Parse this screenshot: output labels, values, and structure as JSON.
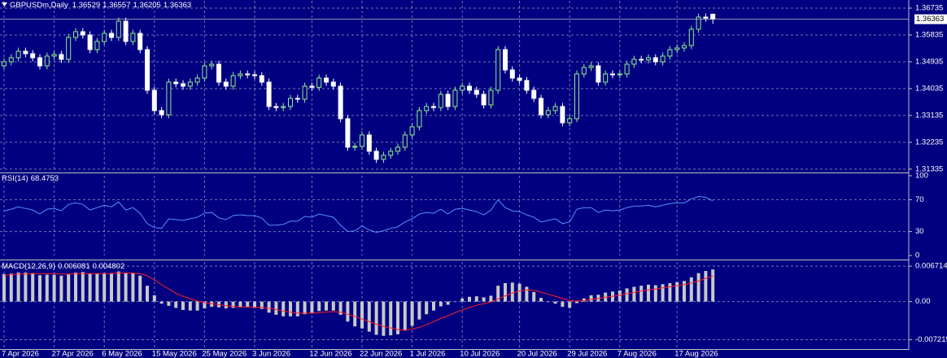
{
  "chart_data": [
    {
      "type": "candlestick",
      "title": "GBPUSDm,Daily",
      "up_color": "#90ee90",
      "down_color": "#ffffff",
      "ylim": [
        1.3125,
        1.3698
      ],
      "yticks": [
        1.36735,
        1.35835,
        1.34935,
        1.34035,
        1.33135,
        1.32235,
        1.31335
      ],
      "grid": true,
      "categories": [
        "7 Apr 2026",
        null,
        null,
        null,
        null,
        null,
        null,
        "27 Apr 2026",
        null,
        null,
        null,
        null,
        null,
        null,
        "6 May 2026",
        null,
        null,
        null,
        null,
        null,
        null,
        "15 May 2026",
        null,
        null,
        null,
        null,
        null,
        null,
        "25 May 2026",
        null,
        null,
        null,
        null,
        null,
        null,
        "3 Jun 2026",
        null,
        null,
        null,
        null,
        null,
        null,
        null,
        "12 Jun 2026",
        null,
        null,
        null,
        null,
        null,
        null,
        "22 Jun 2026",
        null,
        null,
        null,
        null,
        null,
        null,
        "1 Jul 2026",
        null,
        null,
        null,
        null,
        null,
        null,
        "10 Jul 2026",
        null,
        null,
        null,
        null,
        null,
        null,
        null,
        "20 Jul 2026",
        null,
        null,
        null,
        null,
        null,
        null,
        "29 Jul 2026",
        null,
        null,
        null,
        null,
        null,
        null,
        "7 Aug 2026",
        null,
        null,
        null,
        null,
        null,
        null,
        null,
        "17 Aug 2026",
        null,
        null,
        null,
        null,
        null
      ],
      "open": [
        1.348,
        1.34935,
        1.35071,
        1.35289,
        1.35207,
        1.35071,
        1.34798,
        1.35126,
        1.3518,
        1.35017,
        1.35753,
        1.35944,
        1.35835,
        1.35344,
        1.35617,
        1.35889,
        1.35753,
        1.36298,
        1.35617,
        1.35889,
        1.35344,
        1.3398,
        1.33299,
        1.33162,
        1.34253,
        1.342,
        1.34117,
        1.34253,
        1.34389,
        1.34798,
        1.34853,
        1.34253,
        1.34117,
        1.34471,
        1.34526,
        1.345,
        1.34471,
        1.34253,
        1.33435,
        1.334,
        1.33435,
        1.33708,
        1.3368,
        1.34117,
        1.3408,
        1.34389,
        1.34253,
        1.34117,
        1.33026,
        1.32071,
        1.321,
        1.32481,
        1.31935,
        1.31663,
        1.31799,
        1.31935,
        1.32071,
        1.32481,
        1.32753,
        1.33299,
        1.33435,
        1.334,
        1.33844,
        1.33435,
        1.3398,
        1.34117,
        1.3398,
        1.33844,
        1.33489,
        1.3398,
        1.35344,
        1.34662,
        1.34389,
        1.34308,
        1.3398,
        1.33708,
        1.33162,
        1.33299,
        1.33435,
        1.3289,
        1.33026,
        1.34526,
        1.34744,
        1.34798,
        1.34253,
        1.34526,
        1.345,
        1.34526,
        1.34853,
        1.35017,
        1.35,
        1.35071,
        1.34935,
        1.35126,
        1.35344,
        1.35398,
        1.3548,
        1.36026,
        1.36435,
        1.36529
      ],
      "high": [
        1.35055,
        1.35191,
        1.35409,
        1.35409,
        1.35327,
        1.35191,
        1.35246,
        1.353,
        1.353,
        1.35873,
        1.36064,
        1.36064,
        1.35955,
        1.35737,
        1.36009,
        1.36009,
        1.36418,
        1.36418,
        1.36009,
        1.36009,
        1.35464,
        1.341,
        1.33419,
        1.34373,
        1.34373,
        1.3432,
        1.34373,
        1.34509,
        1.34918,
        1.34973,
        1.34973,
        1.34373,
        1.34591,
        1.34646,
        1.34646,
        1.3462,
        1.34591,
        1.34373,
        1.33555,
        1.33555,
        1.33828,
        1.33828,
        1.34237,
        1.34237,
        1.34509,
        1.34509,
        1.34373,
        1.34237,
        1.33146,
        1.3222,
        1.32601,
        1.32601,
        1.32055,
        1.31919,
        1.32055,
        1.32191,
        1.32601,
        1.32873,
        1.33419,
        1.33555,
        1.33555,
        1.33964,
        1.33964,
        1.341,
        1.34237,
        1.34237,
        1.341,
        1.33964,
        1.341,
        1.35464,
        1.35464,
        1.34782,
        1.34509,
        1.34428,
        1.341,
        1.33828,
        1.33419,
        1.33555,
        1.33555,
        1.33146,
        1.34646,
        1.34864,
        1.34918,
        1.34918,
        1.34646,
        1.34646,
        1.34646,
        1.34973,
        1.35137,
        1.35137,
        1.35191,
        1.35191,
        1.35246,
        1.35464,
        1.35518,
        1.356,
        1.36146,
        1.36555,
        1.36555,
        1.36557
      ],
      "low": [
        1.3468,
        1.34815,
        1.34951,
        1.35087,
        1.34951,
        1.34678,
        1.34678,
        1.35006,
        1.34897,
        1.34897,
        1.35633,
        1.35715,
        1.35224,
        1.35224,
        1.35497,
        1.35633,
        1.35633,
        1.35497,
        1.35497,
        1.35224,
        1.3386,
        1.33179,
        1.33042,
        1.33042,
        1.3408,
        1.33997,
        1.33997,
        1.34133,
        1.34269,
        1.34678,
        1.34133,
        1.33997,
        1.33997,
        1.34351,
        1.3438,
        1.34351,
        1.34133,
        1.33315,
        1.3328,
        1.3328,
        1.33315,
        1.3356,
        1.3356,
        1.3396,
        1.3396,
        1.34133,
        1.33997,
        1.32906,
        1.31951,
        1.31951,
        1.3198,
        1.31815,
        1.31543,
        1.31543,
        1.31679,
        1.31815,
        1.31951,
        1.32361,
        1.32633,
        1.33179,
        1.3328,
        1.3328,
        1.33315,
        1.33315,
        1.3386,
        1.3386,
        1.33724,
        1.33369,
        1.33369,
        1.3386,
        1.34542,
        1.34269,
        1.34188,
        1.3386,
        1.33588,
        1.33042,
        1.33042,
        1.33179,
        1.3277,
        1.3277,
        1.32906,
        1.34406,
        1.34624,
        1.34133,
        1.34133,
        1.3438,
        1.3438,
        1.34406,
        1.34733,
        1.3488,
        1.3488,
        1.34815,
        1.34815,
        1.35006,
        1.35224,
        1.35278,
        1.3536,
        1.35906,
        1.3628,
        1.36205
      ],
      "close": [
        1.34935,
        1.35071,
        1.35289,
        1.35207,
        1.35071,
        1.34798,
        1.35126,
        1.3518,
        1.35017,
        1.35753,
        1.35944,
        1.35835,
        1.35344,
        1.35617,
        1.35889,
        1.35753,
        1.36298,
        1.35617,
        1.35889,
        1.35344,
        1.3398,
        1.33299,
        1.33162,
        1.34253,
        1.342,
        1.34117,
        1.34253,
        1.34389,
        1.34798,
        1.34853,
        1.34253,
        1.34117,
        1.34471,
        1.34526,
        1.345,
        1.34471,
        1.34253,
        1.33435,
        1.334,
        1.33435,
        1.33708,
        1.3368,
        1.34117,
        1.3408,
        1.34389,
        1.34253,
        1.34117,
        1.33026,
        1.32071,
        1.321,
        1.32481,
        1.31935,
        1.31663,
        1.31799,
        1.31935,
        1.32071,
        1.32481,
        1.32753,
        1.33299,
        1.33435,
        1.334,
        1.33844,
        1.33435,
        1.3398,
        1.34117,
        1.3398,
        1.33844,
        1.33489,
        1.3398,
        1.35344,
        1.34662,
        1.34389,
        1.34308,
        1.3398,
        1.33708,
        1.33162,
        1.33299,
        1.33435,
        1.3289,
        1.33026,
        1.34526,
        1.34744,
        1.34798,
        1.34253,
        1.34526,
        1.345,
        1.34526,
        1.34853,
        1.35017,
        1.35,
        1.35071,
        1.34935,
        1.35126,
        1.35344,
        1.35398,
        1.3548,
        1.36026,
        1.36435,
        1.364,
        1.36363
      ]
    },
    {
      "type": "line",
      "title": "RSI(14)",
      "color": "#5a8dff",
      "ylim": [
        0,
        100
      ],
      "yticks": [
        100,
        70,
        30,
        0
      ],
      "grid": true,
      "values": [
        56,
        58,
        61,
        59,
        57,
        52,
        58,
        59,
        56,
        64,
        66,
        64,
        57,
        60,
        63,
        61,
        67,
        57,
        60,
        53,
        40,
        35,
        34,
        46,
        45,
        44,
        46,
        48,
        53,
        54,
        47,
        45,
        50,
        51,
        50,
        50,
        47,
        38,
        38,
        39,
        43,
        43,
        49,
        48,
        52,
        50,
        48,
        38,
        30,
        31,
        37,
        32,
        29,
        31,
        34,
        36,
        42,
        46,
        52,
        54,
        53,
        58,
        52,
        58,
        59,
        57,
        55,
        51,
        57,
        70,
        60,
        56,
        55,
        51,
        48,
        42,
        44,
        46,
        40,
        42,
        58,
        60,
        60,
        54,
        57,
        56,
        57,
        60,
        62,
        62,
        63,
        61,
        63,
        65,
        66,
        66,
        71,
        74,
        73,
        68.4753
      ]
    },
    {
      "type": "bar",
      "title": "MACD(12,26,9)",
      "color": "#c8c8c8",
      "signal_color": "#ff2020",
      "ylim": [
        -0.009,
        0.0075
      ],
      "yticks": [
        0.006714,
        {
          "value": 0,
          "label": "0.00"
        },
        -0.007219
      ],
      "grid": true,
      "values": [
        0.0052,
        0.0053,
        0.0055,
        0.0055,
        0.0054,
        0.005,
        0.0051,
        0.0051,
        0.0049,
        0.0052,
        0.0055,
        0.0056,
        0.0053,
        0.0053,
        0.0054,
        0.0054,
        0.0057,
        0.0055,
        0.0054,
        0.0049,
        0.003,
        0.0012,
        -0.0004,
        -0.0008,
        -0.0012,
        -0.0016,
        -0.0017,
        -0.0017,
        -0.0013,
        -0.001,
        -0.0011,
        -0.0013,
        -0.0012,
        -0.0011,
        -0.0011,
        -0.0012,
        -0.0014,
        -0.0021,
        -0.0025,
        -0.0028,
        -0.0028,
        -0.0028,
        -0.0024,
        -0.0022,
        -0.0018,
        -0.0017,
        -0.0017,
        -0.0025,
        -0.0038,
        -0.0047,
        -0.0051,
        -0.0057,
        -0.0063,
        -0.0065,
        -0.0064,
        -0.0062,
        -0.0055,
        -0.0046,
        -0.0034,
        -0.0024,
        -0.0017,
        -0.0009,
        -0.0006,
        0.0,
        0.0006,
        0.0009,
        0.001,
        0.0008,
        0.0011,
        0.003,
        0.0035,
        0.0036,
        0.0034,
        0.0028,
        0.0018,
        0.0007,
        -0.0001,
        -0.0004,
        -0.001,
        -0.0012,
        -0.0003,
        0.0006,
        0.0012,
        0.0013,
        0.0017,
        0.0019,
        0.0021,
        0.0025,
        0.0028,
        0.003,
        0.0032,
        0.0031,
        0.0033,
        0.0035,
        0.0037,
        0.0039,
        0.0046,
        0.0054,
        0.0058,
        0.006081
      ],
      "signal": [
        0.005,
        0.0051,
        0.0052,
        0.0052,
        0.0053,
        0.0053,
        0.0053,
        0.0053,
        0.0052,
        0.0052,
        0.0053,
        0.0053,
        0.0053,
        0.0053,
        0.0053,
        0.0053,
        0.0054,
        0.0054,
        0.0054,
        0.0053,
        0.0049,
        0.0041,
        0.0032,
        0.0024,
        0.0016,
        0.001,
        0.0005,
        0.0001,
        -0.0002,
        -0.0004,
        -0.0006,
        -0.0008,
        -0.0009,
        -0.001,
        -0.001,
        -0.0011,
        -0.0011,
        -0.0013,
        -0.0015,
        -0.0018,
        -0.002,
        -0.0022,
        -0.0022,
        -0.0022,
        -0.0021,
        -0.002,
        -0.0019,
        -0.002,
        -0.0024,
        -0.0028,
        -0.0033,
        -0.0038,
        -0.0043,
        -0.0047,
        -0.005,
        -0.0053,
        -0.0054,
        -0.0052,
        -0.0049,
        -0.0044,
        -0.0038,
        -0.0032,
        -0.0027,
        -0.0021,
        -0.0016,
        -0.0011,
        -0.0007,
        -0.0004,
        -0.0001,
        0.0005,
        0.0011,
        0.0016,
        0.002,
        0.0022,
        0.0021,
        0.0018,
        0.0014,
        0.001,
        0.0006,
        0.0002,
        0.0001,
        0.0002,
        0.0004,
        0.0006,
        0.0008,
        0.001,
        0.0012,
        0.0015,
        0.0017,
        0.002,
        0.0022,
        0.0024,
        0.0026,
        0.0028,
        0.003,
        0.0032,
        0.0035,
        0.0039,
        0.0044,
        0.004802
      ]
    }
  ]
}
